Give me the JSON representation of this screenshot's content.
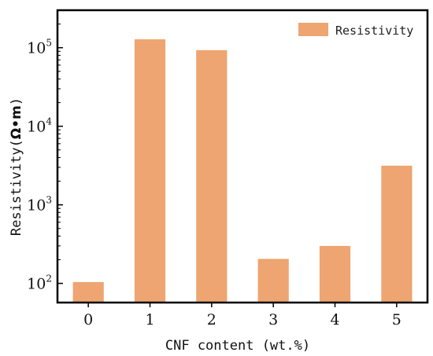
{
  "chart_data": {
    "type": "bar",
    "categories": [
      "0",
      "1",
      "2",
      "3",
      "4",
      "5"
    ],
    "series": [
      {
        "name": "Resistivity",
        "values": [
          104,
          128000,
          93000,
          205,
          300,
          3150
        ]
      }
    ],
    "y_scale": "log",
    "ylim": [
      57,
      300000
    ],
    "y_ticks": [
      {
        "base": "10",
        "exp": "2",
        "value": 100
      },
      {
        "base": "10",
        "exp": "3",
        "value": 1000
      },
      {
        "base": "10",
        "exp": "4",
        "value": 10000
      },
      {
        "base": "10",
        "exp": "5",
        "value": 100000
      }
    ],
    "xlabel": "CNF content (wt.%)",
    "ylabel": {
      "main": "Resistivity",
      "unit": "Ω•m"
    },
    "bar_color": "#eea571",
    "legend": {
      "position": "top-right",
      "label": "Resistivity"
    },
    "grid": false
  }
}
